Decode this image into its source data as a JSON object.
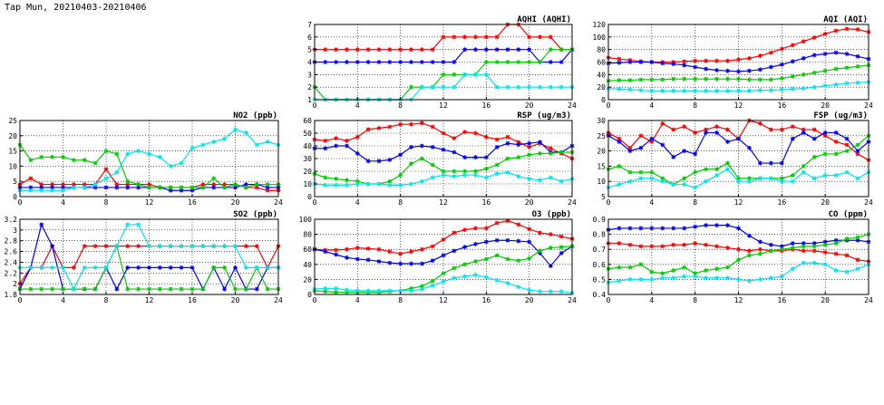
{
  "page_title": "Tap Mun, 20210403-20210406",
  "chart_data": [
    {
      "id": "aqhi",
      "type": "line",
      "title": "AQHI (AQHI)",
      "xlim": [
        0,
        24
      ],
      "ylim": [
        1,
        7
      ],
      "x_ticks": [
        0,
        4,
        8,
        12,
        16,
        20,
        24
      ],
      "y_ticks": [
        1,
        2,
        3,
        4,
        5,
        6,
        7
      ],
      "grid": true,
      "series": [
        {
          "color": "#ff0000",
          "values": [
            5,
            5,
            5,
            5,
            5,
            5,
            5,
            5,
            5,
            5,
            5,
            5,
            6,
            6,
            6,
            6,
            6,
            6,
            7,
            7,
            6,
            6,
            6,
            5,
            5
          ]
        },
        {
          "color": "#0000ff",
          "values": [
            4,
            4,
            4,
            4,
            4,
            4,
            4,
            4,
            4,
            4,
            4,
            4,
            4,
            4,
            5,
            5,
            5,
            5,
            5,
            5,
            5,
            4,
            4,
            4,
            5
          ]
        },
        {
          "color": "#00cc00",
          "values": [
            2,
            1,
            1,
            1,
            1,
            1,
            1,
            1,
            1,
            2,
            2,
            2,
            3,
            3,
            3,
            3,
            4,
            4,
            4,
            4,
            4,
            4,
            5,
            5,
            5
          ]
        },
        {
          "color": "#00e5ee",
          "values": [
            1,
            1,
            1,
            1,
            1,
            1,
            1,
            1,
            1,
            1,
            2,
            2,
            2,
            2,
            3,
            3,
            3,
            2,
            2,
            2,
            2,
            2,
            2,
            2,
            2
          ]
        }
      ]
    },
    {
      "id": "aqi",
      "type": "line",
      "title": "AQI (AQI)",
      "xlim": [
        0,
        24
      ],
      "ylim": [
        0,
        120
      ],
      "x_ticks": [
        0,
        4,
        8,
        12,
        16,
        20,
        24
      ],
      "y_ticks": [
        0,
        20,
        40,
        60,
        80,
        100,
        120
      ],
      "grid": true,
      "series": [
        {
          "color": "#ff0000",
          "values": [
            67,
            65,
            63,
            61,
            60,
            60,
            60,
            61,
            62,
            62,
            62,
            62,
            64,
            66,
            70,
            75,
            81,
            87,
            93,
            99,
            105,
            110,
            113,
            112,
            108
          ]
        },
        {
          "color": "#0000ff",
          "values": [
            58,
            59,
            60,
            60,
            60,
            58,
            57,
            55,
            52,
            49,
            47,
            46,
            45,
            46,
            48,
            52,
            56,
            61,
            66,
            71,
            73,
            75,
            73,
            69,
            65
          ]
        },
        {
          "color": "#00cc00",
          "values": [
            30,
            31,
            31,
            32,
            32,
            32,
            33,
            33,
            33,
            33,
            33,
            33,
            33,
            32,
            32,
            32,
            34,
            37,
            40,
            43,
            46,
            49,
            51,
            53,
            55
          ]
        },
        {
          "color": "#00e5ee",
          "values": [
            18,
            17,
            16,
            15,
            14,
            14,
            14,
            14,
            14,
            14,
            14,
            14,
            14,
            14,
            15,
            15,
            16,
            17,
            18,
            20,
            22,
            24,
            26,
            27,
            28
          ]
        }
      ]
    },
    {
      "id": "no2",
      "type": "line",
      "title": "NO2 (ppb)",
      "xlim": [
        0,
        24
      ],
      "ylim": [
        0,
        25
      ],
      "x_ticks": [
        0,
        4,
        8,
        12,
        16,
        20,
        24
      ],
      "y_ticks": [
        0,
        5,
        10,
        15,
        20,
        25
      ],
      "grid": true,
      "series": [
        {
          "color": "#ff0000",
          "values": [
            4,
            6,
            4,
            4,
            4,
            4,
            4,
            4,
            9,
            4,
            4,
            4,
            4,
            3,
            3,
            3,
            3,
            4,
            4,
            4,
            4,
            3,
            3,
            2,
            2
          ]
        },
        {
          "color": "#0000ff",
          "values": [
            3,
            3,
            3,
            3,
            3,
            3,
            3,
            3,
            3,
            3,
            3,
            3,
            3,
            3,
            2,
            2,
            2,
            3,
            3,
            3,
            3,
            4,
            4,
            3,
            3
          ]
        },
        {
          "color": "#00cc00",
          "values": [
            17,
            12,
            13,
            13,
            13,
            12,
            12,
            11,
            15,
            14,
            5,
            4,
            3,
            3,
            3,
            3,
            3,
            3,
            6,
            3,
            4,
            3,
            4,
            4,
            4
          ]
        },
        {
          "color": "#00e5ee",
          "values": [
            2,
            2,
            2,
            2,
            2,
            3,
            3,
            4,
            6,
            8,
            14,
            15,
            14,
            13,
            10,
            11,
            16,
            17,
            18,
            19,
            22,
            21,
            17,
            18,
            17
          ]
        }
      ]
    },
    {
      "id": "rsp",
      "type": "line",
      "title": "RSP (ug/m3)",
      "xlim": [
        0,
        24
      ],
      "ylim": [
        0,
        60
      ],
      "x_ticks": [
        0,
        4,
        8,
        12,
        16,
        20,
        24
      ],
      "y_ticks": [
        0,
        10,
        20,
        30,
        40,
        50,
        60
      ],
      "grid": true,
      "series": [
        {
          "color": "#ff0000",
          "values": [
            45,
            44,
            46,
            44,
            47,
            53,
            54,
            55,
            57,
            57,
            58,
            55,
            50,
            46,
            51,
            50,
            47,
            45,
            47,
            43,
            39,
            42,
            38,
            34,
            30
          ]
        },
        {
          "color": "#0000ff",
          "values": [
            38,
            38,
            40,
            40,
            34,
            28,
            28,
            29,
            33,
            39,
            40,
            39,
            37,
            35,
            31,
            31,
            31,
            39,
            42,
            41,
            42,
            43,
            35,
            35,
            40
          ]
        },
        {
          "color": "#00cc00",
          "values": [
            18,
            15,
            14,
            13,
            12,
            10,
            10,
            12,
            17,
            26,
            30,
            25,
            20,
            20,
            20,
            20,
            22,
            25,
            30,
            31,
            33,
            34,
            34,
            35,
            35
          ]
        },
        {
          "color": "#00e5ee",
          "values": [
            10,
            9,
            9,
            9,
            10,
            10,
            10,
            9,
            9,
            10,
            12,
            15,
            17,
            16,
            17,
            17,
            15,
            18,
            19,
            16,
            14,
            13,
            15,
            12,
            14
          ]
        }
      ]
    },
    {
      "id": "fsp",
      "type": "line",
      "title": "FSP (ug/m3)",
      "xlim": [
        0,
        24
      ],
      "ylim": [
        5,
        30
      ],
      "x_ticks": [
        0,
        4,
        8,
        12,
        16,
        20,
        24
      ],
      "y_ticks": [
        5,
        10,
        15,
        20,
        25,
        30
      ],
      "grid": true,
      "series": [
        {
          "color": "#ff0000",
          "values": [
            26,
            24,
            21,
            25,
            23,
            29,
            27,
            28,
            26,
            27,
            28,
            27,
            24,
            30,
            29,
            27,
            27,
            28,
            27,
            27,
            25,
            23,
            22,
            19,
            17
          ]
        },
        {
          "color": "#0000ff",
          "values": [
            25,
            23,
            20,
            21,
            24,
            22,
            18,
            20,
            19,
            26,
            26,
            23,
            24,
            21,
            16,
            16,
            16,
            24,
            26,
            24,
            26,
            26,
            24,
            20,
            23
          ]
        },
        {
          "color": "#00cc00",
          "values": [
            14,
            15,
            13,
            13,
            13,
            11,
            9,
            11,
            13,
            14,
            14,
            16,
            11,
            11,
            11,
            11,
            11,
            12,
            15,
            18,
            19,
            19,
            20,
            22,
            25
          ]
        },
        {
          "color": "#00e5ee",
          "values": [
            8,
            9,
            10,
            11,
            11,
            10,
            9,
            9,
            8,
            10,
            12,
            14,
            10,
            10,
            11,
            11,
            10,
            10,
            13,
            11,
            12,
            12,
            13,
            11,
            13
          ]
        }
      ]
    },
    {
      "id": "so2",
      "type": "line",
      "title": "SO2 (ppb)",
      "xlim": [
        0,
        24
      ],
      "ylim": [
        1.8,
        3.2
      ],
      "x_ticks": [
        0,
        4,
        8,
        12,
        16,
        20,
        24
      ],
      "y_ticks": [
        1.8,
        2.0,
        2.2,
        2.4,
        2.6,
        2.8,
        3.0,
        3.2
      ],
      "grid": true,
      "series": [
        {
          "color": "#ff0000",
          "values": [
            2.0,
            2.3,
            2.3,
            2.7,
            2.3,
            2.3,
            2.7,
            2.7,
            2.7,
            2.7,
            2.7,
            2.7,
            2.7,
            2.7,
            2.7,
            2.7,
            2.7,
            2.7,
            2.7,
            2.7,
            2.7,
            2.7,
            2.7,
            2.3,
            2.7
          ]
        },
        {
          "color": "#0000ff",
          "values": [
            1.9,
            2.3,
            3.1,
            2.7,
            1.9,
            1.9,
            1.9,
            1.9,
            2.3,
            1.9,
            2.3,
            2.3,
            2.3,
            2.3,
            2.3,
            2.3,
            2.3,
            1.9,
            2.3,
            1.9,
            2.3,
            1.9,
            1.9,
            2.3,
            2.3
          ]
        },
        {
          "color": "#00cc00",
          "values": [
            1.9,
            1.9,
            1.9,
            1.9,
            1.9,
            1.9,
            1.9,
            1.9,
            2.3,
            2.7,
            1.9,
            1.9,
            1.9,
            1.9,
            1.9,
            1.9,
            1.9,
            1.9,
            2.3,
            2.3,
            1.9,
            1.9,
            2.3,
            1.9,
            1.9
          ]
        },
        {
          "color": "#00e5ee",
          "values": [
            2.3,
            2.3,
            2.3,
            2.3,
            2.3,
            1.9,
            2.3,
            2.3,
            2.3,
            2.7,
            3.1,
            3.1,
            2.7,
            2.7,
            2.7,
            2.7,
            2.7,
            2.7,
            2.7,
            2.7,
            2.7,
            2.3,
            2.3,
            2.3,
            2.3
          ]
        }
      ]
    },
    {
      "id": "o3",
      "type": "line",
      "title": "O3 (ppb)",
      "xlim": [
        0,
        24
      ],
      "ylim": [
        0,
        100
      ],
      "x_ticks": [
        0,
        4,
        8,
        12,
        16,
        20,
        24
      ],
      "y_ticks": [
        0,
        20,
        40,
        60,
        80,
        100
      ],
      "grid": true,
      "series": [
        {
          "color": "#ff0000",
          "values": [
            60,
            59,
            59,
            60,
            62,
            61,
            60,
            57,
            54,
            57,
            60,
            64,
            73,
            82,
            86,
            88,
            88,
            95,
            98,
            93,
            87,
            82,
            80,
            77,
            74
          ]
        },
        {
          "color": "#0000ff",
          "values": [
            60,
            57,
            53,
            49,
            47,
            46,
            44,
            42,
            41,
            41,
            41,
            45,
            52,
            58,
            63,
            67,
            70,
            72,
            72,
            71,
            70,
            55,
            38,
            55,
            64
          ]
        },
        {
          "color": "#00cc00",
          "values": [
            5,
            4,
            3,
            3,
            3,
            3,
            3,
            4,
            5,
            8,
            11,
            18,
            28,
            35,
            40,
            44,
            47,
            52,
            47,
            45,
            48,
            58,
            62,
            63,
            64
          ]
        },
        {
          "color": "#00e5ee",
          "values": [
            7,
            8,
            8,
            6,
            5,
            5,
            5,
            5,
            5,
            5,
            7,
            12,
            17,
            22,
            24,
            26,
            23,
            19,
            15,
            10,
            6,
            4,
            4,
            4,
            2
          ]
        }
      ]
    },
    {
      "id": "co",
      "type": "line",
      "title": "CO (ppm)",
      "xlim": [
        0,
        24
      ],
      "ylim": [
        0.4,
        0.9
      ],
      "x_ticks": [
        0,
        4,
        8,
        12,
        16,
        20,
        24
      ],
      "y_ticks": [
        0.4,
        0.5,
        0.6,
        0.7,
        0.8,
        0.9
      ],
      "grid": true,
      "series": [
        {
          "color": "#ff0000",
          "values": [
            0.74,
            0.74,
            0.73,
            0.72,
            0.72,
            0.72,
            0.73,
            0.73,
            0.74,
            0.73,
            0.72,
            0.71,
            0.7,
            0.69,
            0.7,
            0.69,
            0.69,
            0.7,
            0.69,
            0.69,
            0.68,
            0.67,
            0.66,
            0.63,
            0.62
          ]
        },
        {
          "color": "#0000ff",
          "values": [
            0.83,
            0.84,
            0.84,
            0.84,
            0.84,
            0.84,
            0.84,
            0.84,
            0.85,
            0.86,
            0.86,
            0.86,
            0.84,
            0.79,
            0.75,
            0.73,
            0.72,
            0.74,
            0.74,
            0.74,
            0.75,
            0.76,
            0.76,
            0.76,
            0.75
          ]
        },
        {
          "color": "#00cc00",
          "values": [
            0.57,
            0.58,
            0.58,
            0.6,
            0.55,
            0.54,
            0.56,
            0.58,
            0.54,
            0.56,
            0.57,
            0.58,
            0.63,
            0.66,
            0.67,
            0.69,
            0.7,
            0.71,
            0.72,
            0.72,
            0.73,
            0.74,
            0.77,
            0.78,
            0.8
          ]
        },
        {
          "color": "#00e5ee",
          "values": [
            0.48,
            0.49,
            0.5,
            0.5,
            0.5,
            0.51,
            0.51,
            0.52,
            0.52,
            0.51,
            0.51,
            0.51,
            0.5,
            0.49,
            0.5,
            0.51,
            0.52,
            0.57,
            0.61,
            0.61,
            0.6,
            0.56,
            0.55,
            0.57,
            0.6
          ]
        }
      ]
    }
  ]
}
